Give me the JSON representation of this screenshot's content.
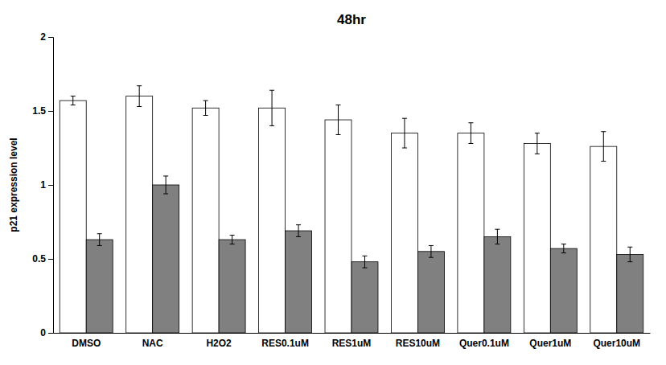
{
  "chart_data": {
    "type": "bar",
    "title": "48hr",
    "ylabel": "p21 expression level",
    "categories": [
      "DMSO",
      "NAC",
      "H2O2",
      "RES0.1uM",
      "RES1uM",
      "RES10uM",
      "Quer0.1uM",
      "Quer1uM",
      "Quer10uM"
    ],
    "series": [
      {
        "color": "#ffffff",
        "values": [
          1.57,
          1.6,
          1.52,
          1.52,
          1.44,
          1.35,
          1.35,
          1.28,
          1.26
        ],
        "errors": [
          0.03,
          0.07,
          0.05,
          0.12,
          0.1,
          0.1,
          0.07,
          0.07,
          0.1
        ]
      },
      {
        "color": "#808080",
        "values": [
          0.63,
          1.0,
          0.63,
          0.69,
          0.48,
          0.55,
          0.65,
          0.57,
          0.53
        ],
        "errors": [
          0.04,
          0.06,
          0.03,
          0.04,
          0.04,
          0.04,
          0.05,
          0.03,
          0.05
        ]
      }
    ],
    "ylim": [
      0,
      2
    ],
    "yticks": [
      0,
      0.5,
      1,
      1.5,
      2
    ],
    "grid": false
  }
}
